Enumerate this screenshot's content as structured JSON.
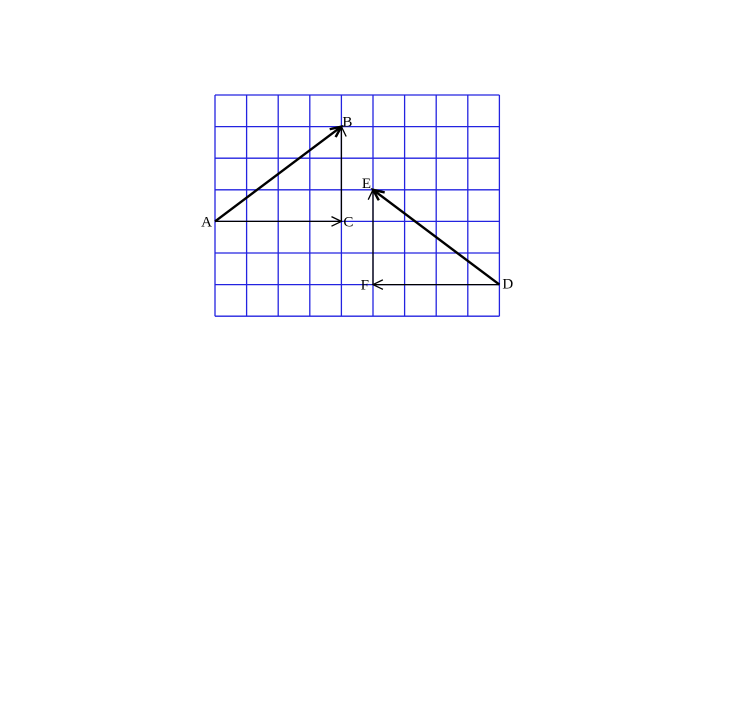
{
  "diagram": {
    "grid": {
      "columns": 9,
      "rows": 7,
      "line_color": "#2323e0"
    },
    "points": {
      "A": {
        "label": "A",
        "col": 0,
        "row": 4
      },
      "B": {
        "label": "B",
        "col": 4,
        "row": 1
      },
      "C": {
        "label": "C",
        "col": 4,
        "row": 4
      },
      "D": {
        "label": "D",
        "col": 9,
        "row": 6
      },
      "E": {
        "label": "E",
        "col": 5,
        "row": 3
      },
      "F": {
        "label": "F",
        "col": 5,
        "row": 6
      }
    },
    "vectors": [
      {
        "name": "AB",
        "from": "A",
        "to": "B",
        "arrow_style": "bold"
      },
      {
        "name": "AC",
        "from": "A",
        "to": "C",
        "arrow_style": "thin"
      },
      {
        "name": "CB",
        "from": "C",
        "to": "B",
        "arrow_style": "thin"
      },
      {
        "name": "DE",
        "from": "D",
        "to": "E",
        "arrow_style": "bold"
      },
      {
        "name": "DF",
        "from": "D",
        "to": "F",
        "arrow_style": "thin"
      },
      {
        "name": "FE",
        "from": "F",
        "to": "E",
        "arrow_style": "thin"
      }
    ],
    "stroke_color": "#000000"
  }
}
